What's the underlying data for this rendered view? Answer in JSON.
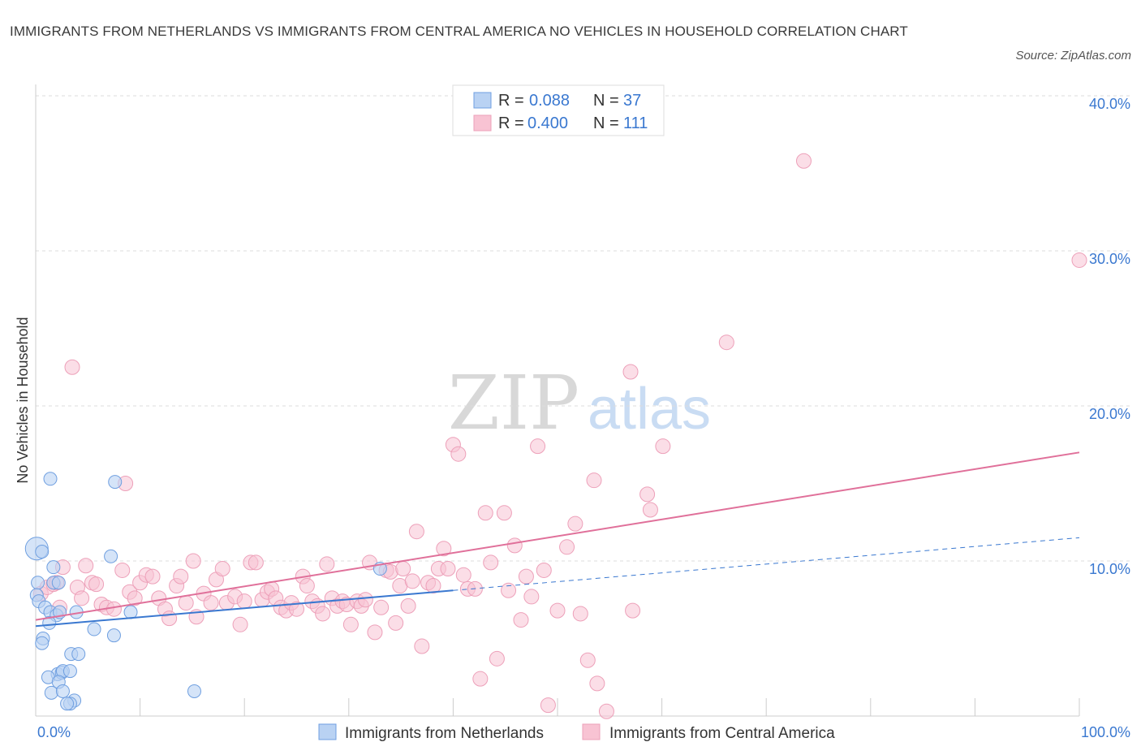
{
  "title": "IMMIGRANTS FROM NETHERLANDS VS IMMIGRANTS FROM CENTRAL AMERICA NO VEHICLES IN HOUSEHOLD CORRELATION CHART",
  "source": "Source: ZipAtlas.com",
  "watermark": {
    "zip": "ZIP",
    "atlas": "atlas"
  },
  "colors": {
    "blue": "#3a78d0",
    "blue_fill": "#b9d2f3",
    "blue_stroke": "#6f9fe0",
    "pink": "#e0709a",
    "pink_fill": "#f8c3d3",
    "pink_stroke": "#eda0b9",
    "value_text": "#3a78d0",
    "grid": "#dddddd"
  },
  "legend_box": {
    "rows": [
      {
        "r_label": "R =",
        "r_value": "0.088",
        "n_label": "N =",
        "n_value": "37"
      },
      {
        "r_label": "R =",
        "r_value": "0.400",
        "n_label": "N =",
        "n_value": "111"
      }
    ]
  },
  "chart_data": {
    "type": "scatter",
    "title": "IMMIGRANTS FROM NETHERLANDS VS IMMIGRANTS FROM CENTRAL AMERICA NO VEHICLES IN HOUSEHOLD CORRELATION CHART",
    "xlabel": "",
    "ylabel": "No Vehicles in Household",
    "xlim": [
      0,
      100
    ],
    "ylim": [
      0,
      40
    ],
    "x_tick_labels": [
      "0.0%",
      "100.0%"
    ],
    "y_ticks": [
      10,
      20,
      30,
      40
    ],
    "y_tick_labels": [
      "10.0%",
      "20.0%",
      "30.0%",
      "40.0%"
    ],
    "grid": true,
    "legend_position": "bottom",
    "series": [
      {
        "name": "Immigrants from Netherlands",
        "color": "#3a78d0",
        "R": 0.088,
        "N": 37,
        "trend": {
          "x0": 0,
          "y0": 5.8,
          "x1": 40,
          "y1": 8.1,
          "dashed_to_x": 100,
          "dashed_to_y": 11.5
        },
        "points": [
          [
            0.1,
            10.8
          ],
          [
            0.6,
            10.6
          ],
          [
            0.2,
            8.6
          ],
          [
            0.1,
            7.8
          ],
          [
            0.3,
            7.4
          ],
          [
            0.9,
            7.0
          ],
          [
            1.7,
            8.6
          ],
          [
            2.2,
            8.6
          ],
          [
            1.7,
            9.6
          ],
          [
            1.4,
            15.3
          ],
          [
            1.4,
            6.7
          ],
          [
            2.0,
            6.5
          ],
          [
            2.3,
            6.7
          ],
          [
            3.9,
            6.7
          ],
          [
            1.3,
            6.0
          ],
          [
            0.7,
            5.0
          ],
          [
            0.6,
            4.7
          ],
          [
            3.4,
            4.0
          ],
          [
            4.1,
            4.0
          ],
          [
            5.6,
            5.6
          ],
          [
            7.2,
            10.3
          ],
          [
            7.5,
            5.2
          ],
          [
            9.1,
            6.7
          ],
          [
            7.6,
            15.1
          ],
          [
            2.1,
            2.7
          ],
          [
            2.5,
            2.8
          ],
          [
            2.6,
            2.9
          ],
          [
            3.3,
            2.9
          ],
          [
            1.2,
            2.5
          ],
          [
            2.2,
            2.2
          ],
          [
            1.5,
            1.5
          ],
          [
            2.6,
            1.6
          ],
          [
            3.7,
            1.0
          ],
          [
            3.3,
            0.8
          ],
          [
            3.0,
            0.8
          ],
          [
            15.2,
            1.6
          ],
          [
            33,
            9.5
          ]
        ]
      },
      {
        "name": "Immigrants from Central America",
        "color": "#e0709a",
        "R": 0.4,
        "N": 111,
        "trend": {
          "x0": 0,
          "y0": 6.2,
          "x1": 100,
          "y1": 17.0
        },
        "points": [
          [
            0.5,
            7.9
          ],
          [
            1.1,
            8.3
          ],
          [
            1.7,
            8.5
          ],
          [
            2.0,
            8.6
          ],
          [
            2.3,
            7.0
          ],
          [
            2.6,
            9.6
          ],
          [
            3.5,
            22.5
          ],
          [
            4.0,
            8.3
          ],
          [
            4.4,
            7.6
          ],
          [
            4.8,
            9.7
          ],
          [
            5.4,
            8.6
          ],
          [
            5.8,
            8.5
          ],
          [
            6.3,
            7.2
          ],
          [
            6.8,
            7.0
          ],
          [
            7.5,
            6.9
          ],
          [
            8.3,
            9.4
          ],
          [
            8.6,
            15.0
          ],
          [
            9.0,
            8.0
          ],
          [
            9.5,
            7.6
          ],
          [
            10.0,
            8.6
          ],
          [
            10.6,
            9.1
          ],
          [
            11.2,
            9.0
          ],
          [
            11.8,
            7.6
          ],
          [
            12.4,
            6.9
          ],
          [
            12.8,
            6.3
          ],
          [
            13.5,
            8.4
          ],
          [
            13.9,
            9.0
          ],
          [
            14.4,
            7.3
          ],
          [
            15.1,
            10.0
          ],
          [
            15.4,
            6.4
          ],
          [
            16.1,
            7.9
          ],
          [
            16.8,
            7.3
          ],
          [
            17.3,
            8.8
          ],
          [
            17.9,
            9.5
          ],
          [
            18.3,
            7.3
          ],
          [
            19.1,
            7.7
          ],
          [
            19.6,
            5.9
          ],
          [
            20.0,
            7.4
          ],
          [
            20.6,
            9.9
          ],
          [
            21.1,
            9.9
          ],
          [
            21.7,
            7.5
          ],
          [
            22.2,
            8.0
          ],
          [
            22.6,
            8.2
          ],
          [
            23.0,
            7.6
          ],
          [
            23.5,
            7.0
          ],
          [
            24.0,
            6.8
          ],
          [
            24.5,
            7.3
          ],
          [
            25.0,
            6.9
          ],
          [
            25.6,
            9.0
          ],
          [
            26.0,
            8.4
          ],
          [
            26.5,
            7.4
          ],
          [
            27.0,
            7.1
          ],
          [
            27.5,
            6.6
          ],
          [
            27.9,
            9.8
          ],
          [
            28.4,
            7.6
          ],
          [
            28.9,
            7.1
          ],
          [
            29.4,
            7.4
          ],
          [
            29.8,
            7.2
          ],
          [
            30.2,
            5.9
          ],
          [
            30.8,
            7.4
          ],
          [
            31.2,
            7.1
          ],
          [
            31.6,
            7.5
          ],
          [
            32.0,
            9.9
          ],
          [
            32.5,
            5.4
          ],
          [
            33.1,
            7.0
          ],
          [
            33.6,
            9.4
          ],
          [
            34.0,
            9.3
          ],
          [
            34.5,
            6.0
          ],
          [
            34.9,
            8.4
          ],
          [
            35.2,
            9.5
          ],
          [
            35.7,
            7.1
          ],
          [
            36.1,
            8.7
          ],
          [
            36.5,
            11.9
          ],
          [
            37.0,
            4.5
          ],
          [
            37.6,
            8.6
          ],
          [
            38.1,
            8.4
          ],
          [
            38.6,
            9.5
          ],
          [
            39.1,
            10.8
          ],
          [
            39.5,
            9.5
          ],
          [
            40.0,
            17.5
          ],
          [
            40.5,
            16.9
          ],
          [
            41.0,
            9.1
          ],
          [
            41.4,
            8.2
          ],
          [
            42.1,
            8.2
          ],
          [
            42.6,
            2.4
          ],
          [
            43.1,
            13.1
          ],
          [
            43.6,
            9.9
          ],
          [
            44.2,
            3.7
          ],
          [
            44.9,
            13.1
          ],
          [
            45.3,
            8.1
          ],
          [
            45.9,
            11.0
          ],
          [
            46.5,
            6.2
          ],
          [
            47.0,
            9.0
          ],
          [
            47.5,
            7.7
          ],
          [
            48.1,
            17.4
          ],
          [
            48.7,
            9.4
          ],
          [
            49.1,
            0.7
          ],
          [
            50.0,
            6.8
          ],
          [
            50.9,
            10.9
          ],
          [
            51.7,
            12.4
          ],
          [
            52.2,
            6.6
          ],
          [
            52.9,
            3.6
          ],
          [
            53.5,
            15.2
          ],
          [
            53.8,
            2.1
          ],
          [
            54.7,
            0.3
          ],
          [
            57.0,
            22.2
          ],
          [
            57.2,
            6.8
          ],
          [
            58.6,
            14.3
          ],
          [
            58.9,
            13.3
          ],
          [
            60.1,
            17.4
          ],
          [
            66.2,
            24.1
          ],
          [
            73.6,
            35.8
          ],
          [
            100,
            29.4
          ]
        ]
      }
    ]
  }
}
